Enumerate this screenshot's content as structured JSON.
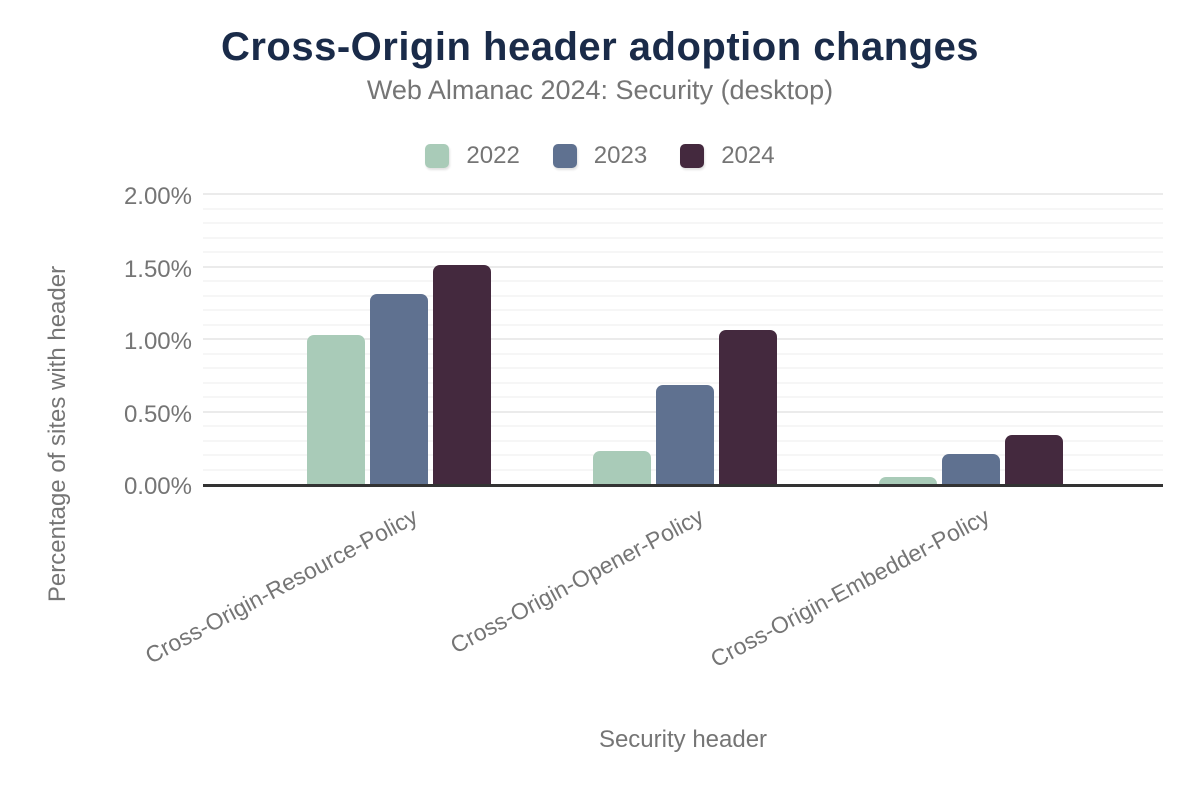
{
  "header": {
    "title": "Cross-Origin header adoption changes",
    "subtitle": "Web Almanac 2024: Security (desktop)"
  },
  "chart_data": {
    "type": "bar",
    "title": "Cross-Origin header adoption changes",
    "subtitle": "Web Almanac 2024: Security (desktop)",
    "categories": [
      "Cross-Origin-Resource-Policy",
      "Cross-Origin-Opener-Policy",
      "Cross-Origin-Embedder-Policy"
    ],
    "series": [
      {
        "name": "2022",
        "color": "#a9cbb8",
        "values": [
          1.03,
          0.23,
          0.05
        ]
      },
      {
        "name": "2023",
        "color": "#5f7190",
        "values": [
          1.31,
          0.68,
          0.21
        ]
      },
      {
        "name": "2024",
        "color": "#44293e",
        "values": [
          1.51,
          1.06,
          0.34
        ]
      }
    ],
    "xlabel": "Security header",
    "ylabel": "Percentage of sites with header",
    "ylim": [
      0,
      2
    ],
    "yticks": [
      "0.00%",
      "0.50%",
      "1.00%",
      "1.50%",
      "2.00%"
    ],
    "minor_grid_step": 0.1,
    "major_grid_step": 0.5,
    "grid": true,
    "legend_position": "top"
  },
  "colors": {
    "title_text": "#1a2b49",
    "muted_text": "#757575",
    "axis_line": "#333333",
    "grid_minor": "#f6f6f6",
    "grid_major": "#ebebeb",
    "background": "#ffffff"
  }
}
